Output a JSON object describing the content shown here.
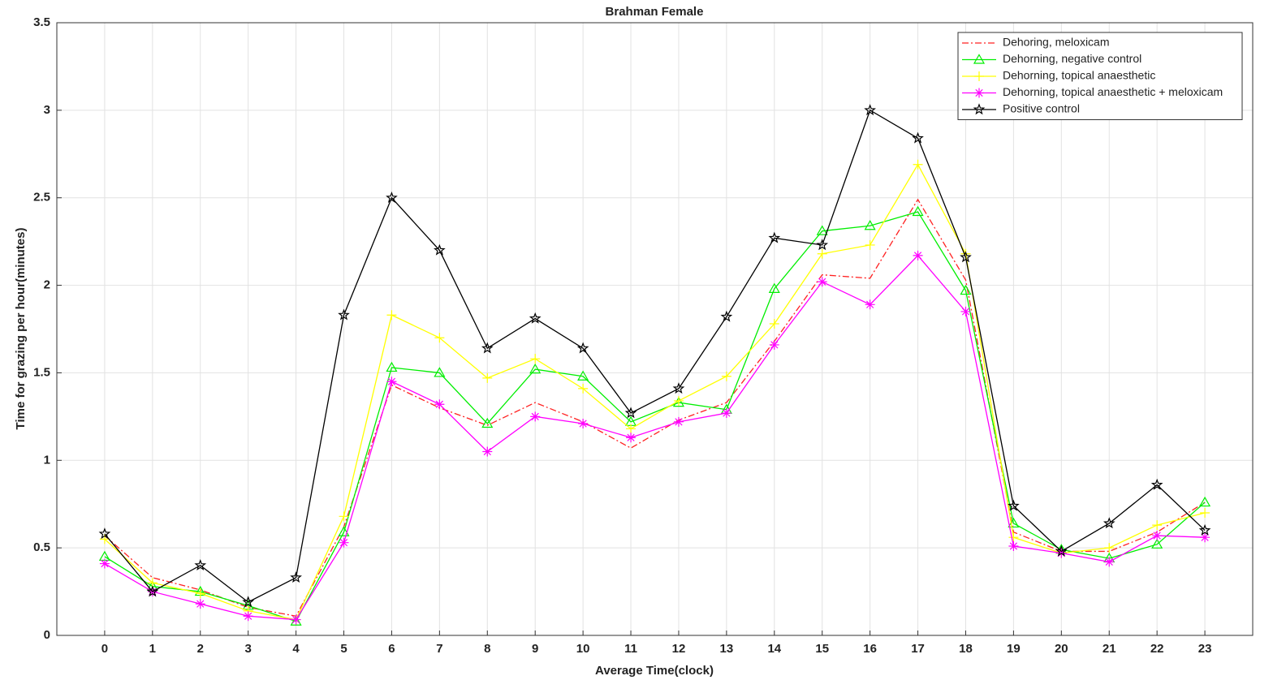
{
  "chart_data": {
    "type": "line",
    "title": "Brahman Female",
    "x_label": "Average Time(clock)",
    "y_label": "Time for grazing per hour(minutes)",
    "x": [
      0,
      1,
      2,
      3,
      4,
      5,
      6,
      7,
      8,
      9,
      10,
      11,
      12,
      13,
      14,
      15,
      16,
      17,
      18,
      19,
      20,
      21,
      22,
      23
    ],
    "xlim": [
      -1,
      24
    ],
    "xticks": [
      0,
      1,
      2,
      3,
      4,
      5,
      6,
      7,
      8,
      9,
      10,
      11,
      12,
      13,
      14,
      15,
      16,
      17,
      18,
      19,
      20,
      21,
      22,
      23
    ],
    "ylim": [
      0,
      3.5
    ],
    "yticks": [
      0,
      0.5,
      1,
      1.5,
      2,
      2.5,
      3,
      3.5
    ],
    "grid": true,
    "legend_position": "upper-right",
    "series": [
      {
        "name": "Dehoring, meloxicam",
        "color": "#ff2020",
        "marker": "none",
        "dash": "dashdot",
        "values": [
          0.57,
          0.33,
          0.26,
          0.16,
          0.11,
          0.62,
          1.43,
          1.3,
          1.2,
          1.33,
          1.22,
          1.07,
          1.23,
          1.33,
          1.68,
          2.06,
          2.04,
          2.49,
          2.03,
          0.59,
          0.48,
          0.48,
          0.59,
          0.76
        ]
      },
      {
        "name": "Dehorning, negative control",
        "color": "#00ee00",
        "marker": "triangle",
        "dash": "solid",
        "values": [
          0.45,
          0.28,
          0.25,
          0.17,
          0.08,
          0.59,
          1.53,
          1.5,
          1.21,
          1.52,
          1.48,
          1.22,
          1.33,
          1.29,
          1.98,
          2.31,
          2.34,
          2.42,
          1.97,
          0.64,
          0.49,
          0.44,
          0.52,
          0.76
        ]
      },
      {
        "name": "Dehorning, topical anaesthetic",
        "color": "#ffff00",
        "marker": "plus",
        "dash": "solid",
        "values": [
          0.55,
          0.3,
          0.24,
          0.14,
          0.09,
          0.68,
          1.83,
          1.7,
          1.47,
          1.58,
          1.41,
          1.18,
          1.34,
          1.48,
          1.78,
          2.18,
          2.23,
          2.69,
          2.18,
          0.56,
          0.47,
          0.5,
          0.63,
          0.7
        ]
      },
      {
        "name": "Dehorning, topical anaesthetic + meloxicam",
        "color": "#ff00ff",
        "marker": "asterisk",
        "dash": "solid",
        "values": [
          0.41,
          0.25,
          0.18,
          0.11,
          0.09,
          0.53,
          1.45,
          1.32,
          1.05,
          1.25,
          1.21,
          1.13,
          1.22,
          1.27,
          1.66,
          2.02,
          1.89,
          2.17,
          1.85,
          0.51,
          0.47,
          0.42,
          0.57,
          0.56
        ]
      },
      {
        "name": "Positive control",
        "color": "#000000",
        "marker": "star",
        "dash": "solid",
        "values": [
          0.58,
          0.25,
          0.4,
          0.19,
          0.33,
          1.83,
          2.5,
          2.2,
          1.64,
          1.81,
          1.64,
          1.27,
          1.41,
          1.82,
          2.27,
          2.23,
          3.0,
          2.84,
          2.16,
          0.74,
          0.48,
          0.64,
          0.86,
          0.6
        ]
      }
    ]
  }
}
